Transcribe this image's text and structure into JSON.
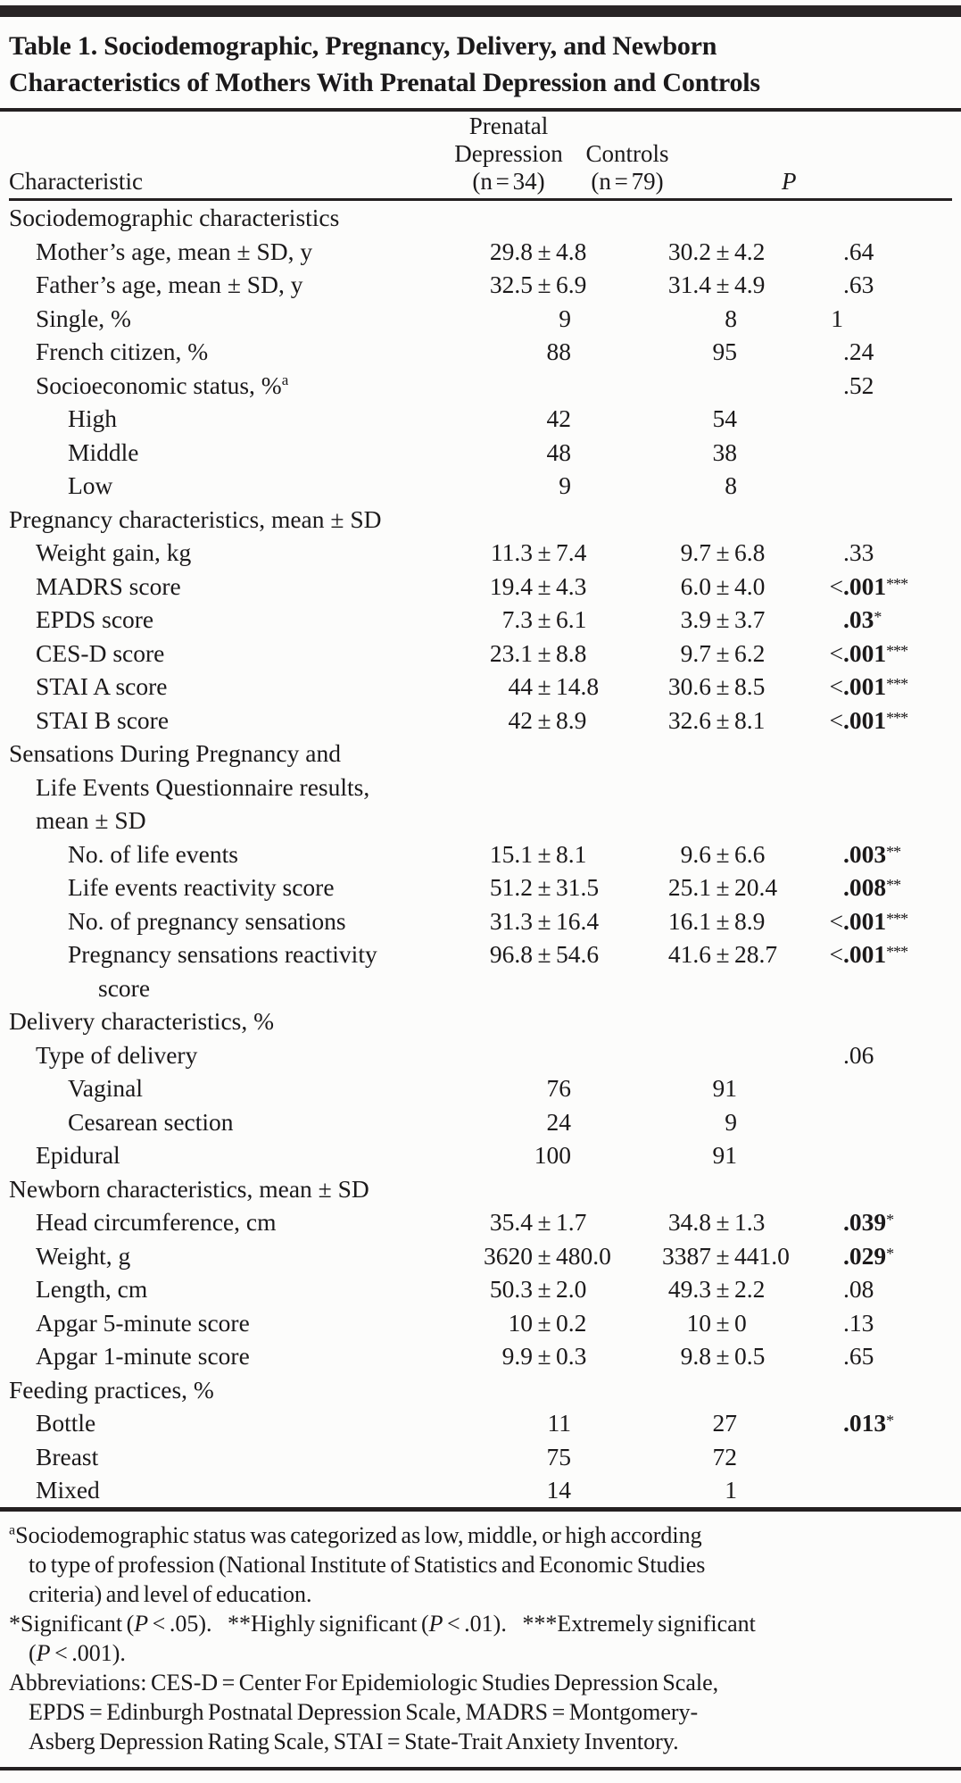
{
  "title_lines": [
    "Table 1. Sociodemographic, Pregnancy, Delivery, and Newborn",
    "Characteristics of Mothers With Prenatal Depression and Controls"
  ],
  "columns": {
    "characteristic": "Characteristic",
    "group1_lines": [
      "Prenatal",
      "Depression",
      "(n = 34)"
    ],
    "group2_lines": [
      "Controls",
      "(n = 79)"
    ],
    "p": "P"
  },
  "rows": [
    {
      "label": "Sociodemographic characteristics",
      "indent": 0
    },
    {
      "label": "Mother’s age, mean ± SD, y",
      "indent": 1,
      "d": "29.8 ± 4.8",
      "c": "30.2 ± 4.2",
      "pd": ".64"
    },
    {
      "label": "Father’s age, mean ± SD, y",
      "indent": 1,
      "d": "32.5 ± 6.9",
      "c": "31.4 ± 4.9",
      "pd": ".63"
    },
    {
      "label": "Single, %",
      "indent": 1,
      "d": "9",
      "c": "8",
      "pi": "1"
    },
    {
      "label": "French citizen, %",
      "indent": 1,
      "d": "88",
      "c": "95",
      "pd": ".24"
    },
    {
      "label": "Socioeconomic status, %",
      "lsup": "a",
      "indent": 1,
      "pd": ".52"
    },
    {
      "label": "High",
      "indent": 2,
      "d": "42",
      "c": "54"
    },
    {
      "label": "Middle",
      "indent": 2,
      "d": "48",
      "c": "38"
    },
    {
      "label": "Low",
      "indent": 2,
      "d": "9",
      "c": "8"
    },
    {
      "label": "Pregnancy characteristics, mean ± SD",
      "indent": 0
    },
    {
      "label": "Weight gain, kg",
      "indent": 1,
      "d": "11.3 ± 7.4",
      "c": "9.7 ± 6.8",
      "pd": ".33"
    },
    {
      "label": "MADRS score",
      "indent": 1,
      "d": "19.4 ± 4.3",
      "c": "6.0 ± 4.0",
      "pi": "<",
      "pd": ".001",
      "ps": "***",
      "pb": true
    },
    {
      "label": "EPDS score",
      "indent": 1,
      "d": "7.3 ± 6.1",
      "c": "3.9 ± 3.7",
      "pd": ".03",
      "ps": "*",
      "pb": true
    },
    {
      "label": "CES-D score",
      "indent": 1,
      "d": "23.1 ± 8.8",
      "c": "9.7 ± 6.2",
      "pi": "<",
      "pd": ".001",
      "ps": "***",
      "pb": true
    },
    {
      "label": "STAI A score",
      "indent": 1,
      "d": "44 ± 14.8",
      "c": "30.6 ± 8.5",
      "pi": "<",
      "pd": ".001",
      "ps": "***",
      "pb": true
    },
    {
      "label": "STAI B score",
      "indent": 1,
      "d": "42 ± 8.9",
      "c": "32.6 ± 8.1",
      "pi": "<",
      "pd": ".001",
      "ps": "***",
      "pb": true
    },
    {
      "label": "Sensations During Pregnancy and",
      "indent": 0,
      "cont": [
        {
          "text": "Life Events Questionnaire results,",
          "indent": 1
        },
        {
          "text": "mean ± SD",
          "indent": 1
        }
      ]
    },
    {
      "label": "No. of life events",
      "indent": 2,
      "d": "15.1 ± 8.1",
      "c": "9.6 ± 6.6",
      "pd": ".003",
      "ps": "**",
      "pb": true
    },
    {
      "label": "Life events reactivity score",
      "indent": 2,
      "d": "51.2 ± 31.5",
      "c": "25.1 ± 20.4",
      "pd": ".008",
      "ps": "**",
      "pb": true
    },
    {
      "label": "No. of pregnancy sensations",
      "indent": 2,
      "d": "31.3 ± 16.4",
      "c": "16.1 ± 8.9",
      "pi": "<",
      "pd": ".001",
      "ps": "***",
      "pb": true
    },
    {
      "label": "Pregnancy sensations reactivity",
      "indent": 2,
      "d": "96.8 ± 54.6",
      "c": "41.6 ± 28.7",
      "pi": "<",
      "pd": ".001",
      "ps": "***",
      "pb": true,
      "cont": [
        {
          "text": "score",
          "indent": 3
        }
      ]
    },
    {
      "label": "Delivery characteristics, %",
      "indent": 0
    },
    {
      "label": "Type of delivery",
      "indent": 1,
      "pd": ".06"
    },
    {
      "label": "Vaginal",
      "indent": 2,
      "d": "76",
      "c": "91"
    },
    {
      "label": "Cesarean section",
      "indent": 2,
      "d": "24",
      "c": "9"
    },
    {
      "label": "Epidural",
      "indent": 1,
      "d": "100",
      "c": "91"
    },
    {
      "label": "Newborn characteristics, mean ± SD",
      "indent": 0
    },
    {
      "label": "Head circumference, cm",
      "indent": 1,
      "d": "35.4 ± 1.7",
      "c": "34.8 ± 1.3",
      "pd": ".039",
      "ps": "*",
      "pb": true
    },
    {
      "label": "Weight, g",
      "indent": 1,
      "d": "3620 ± 480.0",
      "c": "3387 ± 441.0",
      "pd": ".029",
      "ps": "*",
      "pb": true
    },
    {
      "label": "Length, cm",
      "indent": 1,
      "d": "50.3 ± 2.0",
      "c": "49.3 ± 2.2",
      "pd": ".08"
    },
    {
      "label": "Apgar 5-minute score",
      "indent": 1,
      "d": "10 ± 0.2",
      "c": "10 ± 0",
      "pd": ".13"
    },
    {
      "label": "Apgar 1-minute score",
      "indent": 1,
      "d": "9.9 ± 0.3",
      "c": "9.8 ± 0.5",
      "pd": ".65"
    },
    {
      "label": "Feeding practices, %",
      "indent": 0
    },
    {
      "label": "Bottle",
      "indent": 1,
      "d": "11",
      "c": "27",
      "pd": ".013",
      "ps": "*",
      "pb": true
    },
    {
      "label": "Breast",
      "indent": 1,
      "d": "75",
      "c": "72"
    },
    {
      "label": "Mixed",
      "indent": 1,
      "d": "14",
      "c": "1"
    }
  ],
  "footnotes": [
    {
      "sup": "a",
      "lines": [
        "Sociodemographic status was categorized as low, middle, or high according",
        "to type of profession (National Institute of Statistics and Economic Studies",
        "criteria) and level of education."
      ]
    },
    {
      "lines": [
        "*Significant (P < .05).  **Highly significant (P < .01).  ***Extremely significant",
        "(P < .001)."
      ]
    },
    {
      "lines": [
        "Abbreviations: CES-D = Center For Epidemiologic Studies Depression Scale,",
        "EPDS = Edinburgh Postnatal Depression Scale, MADRS = Montgomery-",
        "Asberg Depression Rating Scale, STAI = State-Trait Anxiety Inventory."
      ]
    }
  ]
}
